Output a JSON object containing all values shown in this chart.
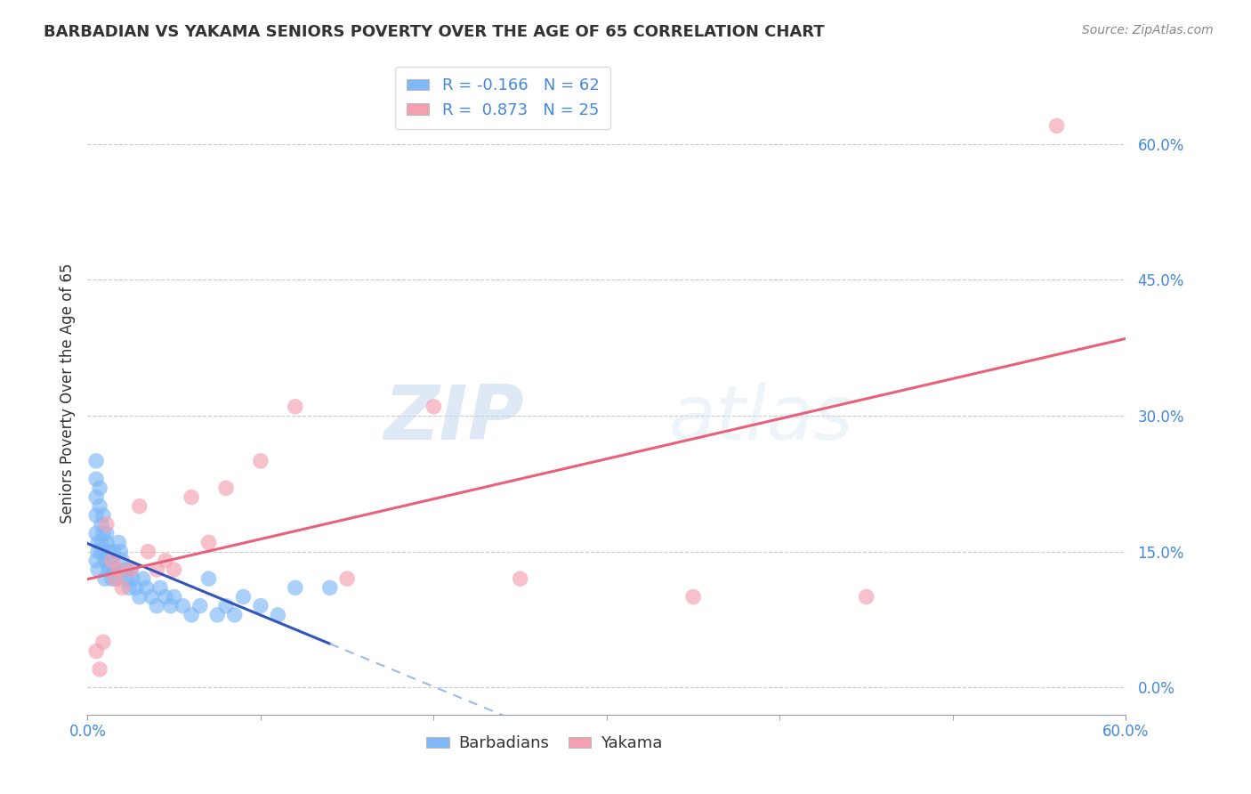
{
  "title": "BARBADIAN VS YAKAMA SENIORS POVERTY OVER THE AGE OF 65 CORRELATION CHART",
  "source": "Source: ZipAtlas.com",
  "ylabel": "Seniors Poverty Over the Age of 65",
  "xlim": [
    0.0,
    60.0
  ],
  "ylim": [
    -3.0,
    68.0
  ],
  "ytick_values": [
    0.0,
    15.0,
    30.0,
    45.0,
    60.0
  ],
  "xtick_values": [
    0.0,
    60.0
  ],
  "barbadian_color": "#7EB8F7",
  "yakama_color": "#F4A0B0",
  "barbadian_R": -0.166,
  "barbadian_N": 62,
  "yakama_R": 0.873,
  "yakama_N": 25,
  "legend_label_1": "Barbadians",
  "legend_label_2": "Yakama",
  "watermark_zip": "ZIP",
  "watermark_atlas": "atlas",
  "background_color": "#ffffff",
  "grid_color": "#cccccc",
  "blue_line_color": "#3355BB",
  "pink_line_color": "#E8607A",
  "blue_dash_color": "#99BBEE",
  "barbadian_x": [
    0.5,
    0.5,
    0.5,
    0.5,
    0.5,
    0.5,
    0.6,
    0.6,
    0.6,
    0.7,
    0.7,
    0.8,
    0.8,
    0.8,
    0.9,
    0.9,
    1.0,
    1.0,
    1.0,
    1.1,
    1.1,
    1.1,
    1.2,
    1.2,
    1.3,
    1.3,
    1.4,
    1.4,
    1.5,
    1.5,
    1.6,
    1.7,
    1.8,
    1.9,
    2.0,
    2.2,
    2.3,
    2.4,
    2.5,
    2.6,
    2.8,
    3.0,
    3.2,
    3.4,
    3.7,
    4.0,
    4.2,
    4.5,
    4.8,
    5.0,
    5.5,
    6.0,
    6.5,
    7.0,
    7.5,
    8.0,
    8.5,
    9.0,
    10.0,
    11.0,
    12.0,
    14.0
  ],
  "barbadian_y": [
    25.0,
    23.0,
    21.0,
    19.0,
    17.0,
    14.0,
    16.0,
    15.0,
    13.0,
    22.0,
    20.0,
    18.0,
    16.0,
    15.0,
    19.0,
    17.0,
    15.0,
    14.0,
    12.0,
    17.0,
    16.0,
    14.0,
    15.0,
    13.0,
    14.0,
    13.0,
    14.0,
    12.0,
    15.0,
    13.0,
    13.0,
    12.0,
    16.0,
    15.0,
    14.0,
    13.0,
    12.0,
    11.0,
    13.0,
    12.0,
    11.0,
    10.0,
    12.0,
    11.0,
    10.0,
    9.0,
    11.0,
    10.0,
    9.0,
    10.0,
    9.0,
    8.0,
    9.0,
    12.0,
    8.0,
    9.0,
    8.0,
    10.0,
    9.0,
    8.0,
    11.0,
    11.0
  ],
  "yakama_x": [
    0.5,
    0.7,
    0.9,
    1.1,
    1.4,
    1.6,
    1.8,
    2.0,
    2.5,
    3.0,
    3.5,
    4.0,
    4.5,
    5.0,
    6.0,
    7.0,
    8.0,
    10.0,
    12.0,
    15.0,
    20.0,
    25.0,
    35.0,
    45.0,
    56.0
  ],
  "yakama_y": [
    4.0,
    2.0,
    5.0,
    18.0,
    14.0,
    12.0,
    13.0,
    11.0,
    13.0,
    20.0,
    15.0,
    13.0,
    14.0,
    13.0,
    21.0,
    16.0,
    22.0,
    25.0,
    31.0,
    12.0,
    31.0,
    12.0,
    10.0,
    10.0,
    62.0
  ]
}
